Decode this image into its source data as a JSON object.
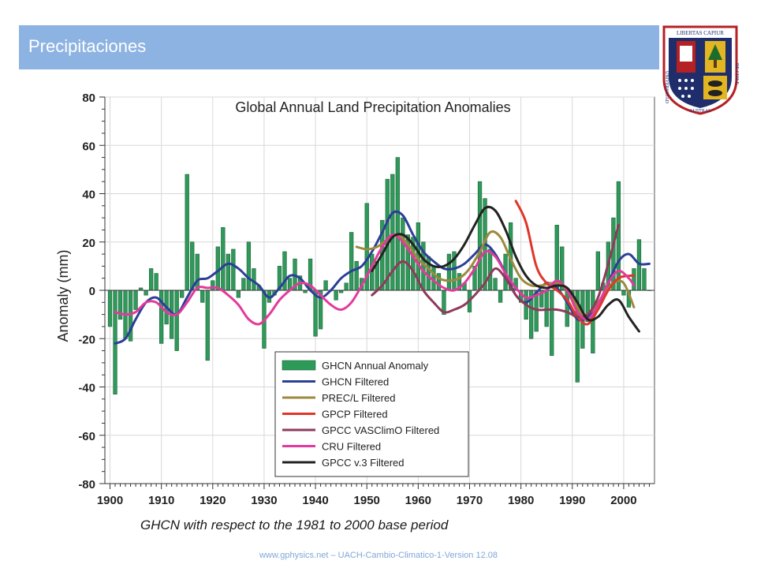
{
  "slide": {
    "title": "Precipitaciones",
    "caption": "GHCN with respect to the 1981 to 2000 base period",
    "footer": "www.gphysics.net – UACH-Cambio-Climatico-1-Version 12.08"
  },
  "crest": {
    "motto": "LIBERTAS CAPIUR",
    "ring_left": "UNIVERSIDAD",
    "ring_bottom": "AUSTRAL",
    "ring_right": "DE CHILE",
    "colors": {
      "red": "#b52025",
      "navy": "#1f2e6b",
      "gold": "#e2b522",
      "green": "#1f6b2b"
    }
  },
  "chart_data": {
    "type": "bar",
    "title": "Global Annual Land Precipitation Anomalies",
    "ylabel": "Anomaly (mm)",
    "xlabel": "",
    "xlim": [
      1899,
      2006
    ],
    "ylim": [
      -80,
      80
    ],
    "xticks": [
      1900,
      1910,
      1920,
      1930,
      1940,
      1950,
      1960,
      1970,
      1980,
      1990,
      2000
    ],
    "yticks": [
      80,
      60,
      40,
      20,
      0,
      -20,
      -40,
      -60,
      -80
    ],
    "legend_position": "bottom-center",
    "bars": {
      "name": "GHCN Annual Anomaly",
      "color": "#2e9a5a",
      "years": [
        1900,
        1901,
        1902,
        1903,
        1904,
        1905,
        1906,
        1907,
        1908,
        1909,
        1910,
        1911,
        1912,
        1913,
        1914,
        1915,
        1916,
        1917,
        1918,
        1919,
        1920,
        1921,
        1922,
        1923,
        1924,
        1925,
        1926,
        1927,
        1928,
        1929,
        1930,
        1931,
        1932,
        1933,
        1934,
        1935,
        1936,
        1937,
        1938,
        1939,
        1940,
        1941,
        1942,
        1943,
        1944,
        1945,
        1946,
        1947,
        1948,
        1949,
        1950,
        1951,
        1952,
        1953,
        1954,
        1955,
        1956,
        1957,
        1958,
        1959,
        1960,
        1961,
        1962,
        1963,
        1964,
        1965,
        1966,
        1967,
        1968,
        1969,
        1970,
        1971,
        1972,
        1973,
        1974,
        1975,
        1976,
        1977,
        1978,
        1979,
        1980,
        1981,
        1982,
        1983,
        1984,
        1985,
        1986,
        1987,
        1988,
        1989,
        1990,
        1991,
        1992,
        1993,
        1994,
        1995,
        1996,
        1997,
        1998,
        1999,
        2000,
        2001,
        2002,
        2003,
        2004,
        2005
      ],
      "values": [
        -15,
        -43,
        -12,
        -20,
        -21,
        -8,
        1,
        -2,
        9,
        7,
        -22,
        -14,
        -20,
        -25,
        -3,
        48,
        20,
        15,
        -5,
        -29,
        4,
        18,
        26,
        15,
        17,
        -3,
        5,
        20,
        9,
        2,
        -24,
        -5,
        -2,
        10,
        16,
        5,
        13,
        6,
        -1,
        13,
        -19,
        -16,
        4,
        0,
        -4,
        -1,
        3,
        24,
        12,
        5,
        36,
        15,
        12,
        29,
        46,
        48,
        55,
        30,
        23,
        22,
        28,
        20,
        14,
        10,
        7,
        -10,
        15,
        16,
        7,
        3,
        -9,
        10,
        45,
        38,
        17,
        5,
        -5,
        15,
        28,
        5,
        -5,
        -12,
        -20,
        -17,
        -7,
        -15,
        -27,
        27,
        18,
        -15,
        -3,
        -38,
        -24,
        -13,
        -26,
        16,
        3,
        20,
        30,
        45,
        -2,
        -7,
        9,
        21,
        9,
        0
      ]
    },
    "series": [
      {
        "name": "GHCN Filtered",
        "color": "#2c3e96",
        "points": [
          [
            1901,
            -22
          ],
          [
            1903,
            -20
          ],
          [
            1905,
            -12
          ],
          [
            1907,
            -5
          ],
          [
            1909,
            -3
          ],
          [
            1911,
            -7
          ],
          [
            1913,
            -10
          ],
          [
            1915,
            -3
          ],
          [
            1917,
            4
          ],
          [
            1919,
            5
          ],
          [
            1921,
            8
          ],
          [
            1923,
            11
          ],
          [
            1925,
            9
          ],
          [
            1927,
            5
          ],
          [
            1929,
            2
          ],
          [
            1931,
            -3
          ],
          [
            1933,
            1
          ],
          [
            1935,
            6
          ],
          [
            1937,
            5
          ],
          [
            1939,
            0
          ],
          [
            1941,
            -3
          ],
          [
            1943,
            0
          ],
          [
            1945,
            5
          ],
          [
            1947,
            8
          ],
          [
            1949,
            10
          ],
          [
            1951,
            16
          ],
          [
            1953,
            24
          ],
          [
            1955,
            32
          ],
          [
            1957,
            31
          ],
          [
            1959,
            23
          ],
          [
            1961,
            16
          ],
          [
            1963,
            12
          ],
          [
            1965,
            9
          ],
          [
            1967,
            9
          ],
          [
            1969,
            11
          ],
          [
            1971,
            15
          ],
          [
            1973,
            19
          ],
          [
            1975,
            15
          ],
          [
            1977,
            7
          ],
          [
            1979,
            -2
          ],
          [
            1981,
            -5
          ],
          [
            1983,
            -1
          ],
          [
            1985,
            3
          ],
          [
            1987,
            1
          ],
          [
            1989,
            -5
          ],
          [
            1991,
            -12
          ],
          [
            1993,
            -11
          ],
          [
            1995,
            -6
          ],
          [
            1997,
            3
          ],
          [
            1999,
            12
          ],
          [
            2001,
            15
          ],
          [
            2003,
            11
          ],
          [
            2005,
            11
          ]
        ]
      },
      {
        "name": "PREC/L Filtered",
        "color": "#9b8a3e",
        "points": [
          [
            1948,
            18
          ],
          [
            1950,
            17
          ],
          [
            1952,
            18
          ],
          [
            1954,
            21
          ],
          [
            1956,
            23
          ],
          [
            1958,
            19
          ],
          [
            1960,
            13
          ],
          [
            1962,
            9
          ],
          [
            1964,
            5
          ],
          [
            1966,
            4
          ],
          [
            1968,
            5
          ],
          [
            1970,
            9
          ],
          [
            1972,
            16
          ],
          [
            1974,
            24
          ],
          [
            1976,
            22
          ],
          [
            1978,
            13
          ],
          [
            1980,
            5
          ],
          [
            1982,
            2
          ],
          [
            1984,
            2
          ],
          [
            1986,
            3
          ],
          [
            1988,
            2
          ],
          [
            1990,
            -3
          ],
          [
            1992,
            -10
          ],
          [
            1994,
            -8
          ],
          [
            1996,
            -2
          ],
          [
            1998,
            3
          ],
          [
            2000,
            3
          ],
          [
            2002,
            -7
          ]
        ]
      },
      {
        "name": "GPCP Filtered",
        "color": "#e0362a",
        "points": [
          [
            1979,
            37
          ],
          [
            1981,
            28
          ],
          [
            1983,
            10
          ],
          [
            1985,
            3
          ],
          [
            1987,
            0
          ],
          [
            1989,
            -4
          ],
          [
            1991,
            -11
          ],
          [
            1993,
            -14
          ],
          [
            1995,
            -8
          ],
          [
            1997,
            0
          ],
          [
            1999,
            5
          ],
          [
            2001,
            6
          ],
          [
            2002,
            6
          ]
        ]
      },
      {
        "name": "GPCC VASClimO Filtered",
        "color": "#8f3a5c",
        "points": [
          [
            1951,
            -2
          ],
          [
            1953,
            2
          ],
          [
            1955,
            8
          ],
          [
            1957,
            12
          ],
          [
            1959,
            8
          ],
          [
            1961,
            0
          ],
          [
            1963,
            -5
          ],
          [
            1965,
            -9
          ],
          [
            1967,
            -8
          ],
          [
            1969,
            -6
          ],
          [
            1971,
            -2
          ],
          [
            1973,
            3
          ],
          [
            1975,
            9
          ],
          [
            1977,
            5
          ],
          [
            1979,
            -2
          ],
          [
            1981,
            -6
          ],
          [
            1983,
            -8
          ],
          [
            1985,
            -8
          ],
          [
            1987,
            -8
          ],
          [
            1989,
            -9
          ],
          [
            1991,
            -11
          ],
          [
            1993,
            -10
          ],
          [
            1995,
            -3
          ],
          [
            1997,
            11
          ],
          [
            1999,
            27
          ]
        ]
      },
      {
        "name": "CRU Filtered",
        "color": "#e23a9c",
        "points": [
          [
            1901,
            -9
          ],
          [
            1903,
            -10
          ],
          [
            1905,
            -9
          ],
          [
            1907,
            -5
          ],
          [
            1909,
            -5
          ],
          [
            1911,
            -9
          ],
          [
            1913,
            -10
          ],
          [
            1915,
            -5
          ],
          [
            1917,
            1
          ],
          [
            1919,
            1
          ],
          [
            1921,
            1
          ],
          [
            1923,
            -2
          ],
          [
            1925,
            -6
          ],
          [
            1927,
            -12
          ],
          [
            1929,
            -14
          ],
          [
            1931,
            -10
          ],
          [
            1933,
            -4
          ],
          [
            1935,
            0
          ],
          [
            1937,
            3
          ],
          [
            1939,
            2
          ],
          [
            1941,
            -2
          ],
          [
            1943,
            -6
          ],
          [
            1945,
            -8
          ],
          [
            1947,
            -5
          ],
          [
            1949,
            2
          ],
          [
            1951,
            10
          ],
          [
            1953,
            18
          ],
          [
            1955,
            23
          ],
          [
            1957,
            20
          ],
          [
            1959,
            14
          ],
          [
            1961,
            8
          ],
          [
            1963,
            4
          ],
          [
            1965,
            1
          ],
          [
            1967,
            0
          ],
          [
            1969,
            3
          ],
          [
            1971,
            9
          ],
          [
            1973,
            16
          ],
          [
            1975,
            14
          ],
          [
            1977,
            7
          ],
          [
            1979,
            1
          ],
          [
            1981,
            -3
          ],
          [
            1983,
            -2
          ],
          [
            1985,
            0
          ],
          [
            1987,
            4
          ],
          [
            1989,
            0
          ],
          [
            1991,
            -9
          ],
          [
            1993,
            -12
          ],
          [
            1995,
            -6
          ],
          [
            1997,
            3
          ],
          [
            1999,
            8
          ],
          [
            2001,
            5
          ],
          [
            2002,
            2
          ]
        ]
      },
      {
        "name": "GPCC v.3 Filtered",
        "color": "#222222",
        "points": [
          [
            1951,
            8
          ],
          [
            1953,
            15
          ],
          [
            1955,
            22
          ],
          [
            1957,
            23
          ],
          [
            1959,
            19
          ],
          [
            1961,
            13
          ],
          [
            1963,
            10
          ],
          [
            1965,
            10
          ],
          [
            1967,
            13
          ],
          [
            1969,
            19
          ],
          [
            1971,
            27
          ],
          [
            1973,
            34
          ],
          [
            1975,
            33
          ],
          [
            1977,
            25
          ],
          [
            1979,
            14
          ],
          [
            1981,
            6
          ],
          [
            1983,
            2
          ],
          [
            1985,
            1
          ],
          [
            1987,
            2
          ],
          [
            1989,
            1
          ],
          [
            1991,
            -5
          ],
          [
            1993,
            -12
          ],
          [
            1995,
            -11
          ],
          [
            1997,
            -6
          ],
          [
            1999,
            -4
          ],
          [
            2001,
            -11
          ],
          [
            2003,
            -17
          ]
        ]
      }
    ]
  }
}
